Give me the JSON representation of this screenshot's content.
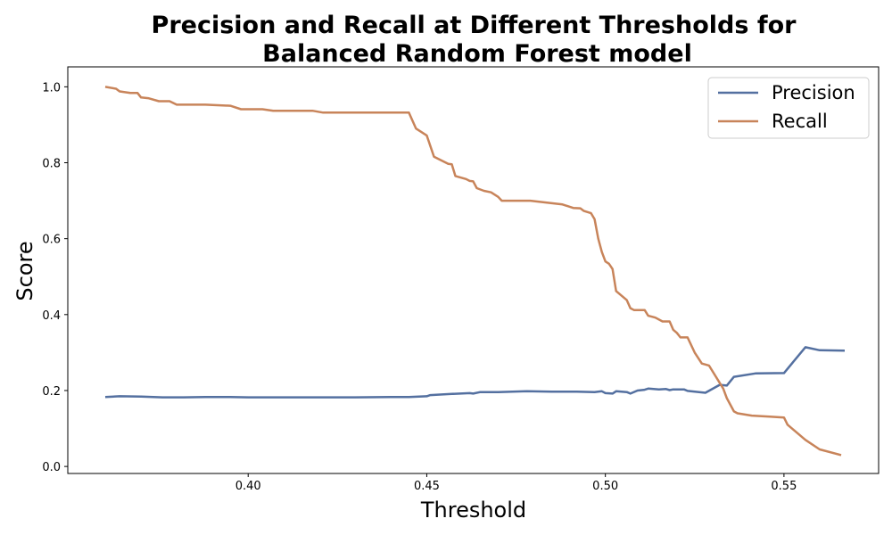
{
  "chart_data": {
    "type": "line",
    "title_lines": [
      "Precision and Recall at Different Thresholds for",
      "Balanced Random Forest  model"
    ],
    "xlabel": "Threshold",
    "ylabel": "Score",
    "xlim": [
      0.3495,
      0.5765
    ],
    "ylim": [
      -0.0185,
      1.0525
    ],
    "xticks": [
      0.4,
      0.45,
      0.5,
      0.55
    ],
    "xtick_labels": [
      "0.40",
      "0.45",
      "0.50",
      "0.55"
    ],
    "yticks": [
      0.0,
      0.2,
      0.4,
      0.6,
      0.8,
      1.0
    ],
    "ytick_labels": [
      "0.0",
      "0.2",
      "0.4",
      "0.6",
      "0.8",
      "1.0"
    ],
    "grid": false,
    "legend_position": "top-right",
    "series": [
      {
        "name": "Precision",
        "color": "#5470a0",
        "points": [
          [
            0.36,
            0.183
          ],
          [
            0.364,
            0.185
          ],
          [
            0.37,
            0.184
          ],
          [
            0.376,
            0.182
          ],
          [
            0.382,
            0.182
          ],
          [
            0.388,
            0.183
          ],
          [
            0.395,
            0.183
          ],
          [
            0.4,
            0.182
          ],
          [
            0.41,
            0.182
          ],
          [
            0.42,
            0.182
          ],
          [
            0.43,
            0.182
          ],
          [
            0.44,
            0.183
          ],
          [
            0.445,
            0.183
          ],
          [
            0.45,
            0.185
          ],
          [
            0.451,
            0.188
          ],
          [
            0.457,
            0.191
          ],
          [
            0.462,
            0.193
          ],
          [
            0.463,
            0.192
          ],
          [
            0.465,
            0.196
          ],
          [
            0.47,
            0.196
          ],
          [
            0.478,
            0.198
          ],
          [
            0.485,
            0.197
          ],
          [
            0.492,
            0.197
          ],
          [
            0.497,
            0.196
          ],
          [
            0.499,
            0.198
          ],
          [
            0.5,
            0.193
          ],
          [
            0.502,
            0.192
          ],
          [
            0.503,
            0.198
          ],
          [
            0.506,
            0.196
          ],
          [
            0.507,
            0.192
          ],
          [
            0.509,
            0.2
          ],
          [
            0.511,
            0.202
          ],
          [
            0.512,
            0.205
          ],
          [
            0.515,
            0.203
          ],
          [
            0.517,
            0.204
          ],
          [
            0.518,
            0.201
          ],
          [
            0.519,
            0.203
          ],
          [
            0.522,
            0.203
          ],
          [
            0.523,
            0.199
          ],
          [
            0.528,
            0.194
          ],
          [
            0.532,
            0.215
          ],
          [
            0.534,
            0.213
          ],
          [
            0.536,
            0.236
          ],
          [
            0.542,
            0.245
          ],
          [
            0.55,
            0.246
          ],
          [
            0.556,
            0.314
          ],
          [
            0.56,
            0.306
          ],
          [
            0.567,
            0.305
          ]
        ]
      },
      {
        "name": "Recall",
        "color": "#c8845a",
        "points": [
          [
            0.36,
            1.0
          ],
          [
            0.363,
            0.995
          ],
          [
            0.364,
            0.988
          ],
          [
            0.367,
            0.984
          ],
          [
            0.369,
            0.984
          ],
          [
            0.37,
            0.972
          ],
          [
            0.372,
            0.97
          ],
          [
            0.375,
            0.962
          ],
          [
            0.378,
            0.962
          ],
          [
            0.38,
            0.953
          ],
          [
            0.388,
            0.953
          ],
          [
            0.395,
            0.95
          ],
          [
            0.398,
            0.941
          ],
          [
            0.404,
            0.941
          ],
          [
            0.407,
            0.937
          ],
          [
            0.418,
            0.937
          ],
          [
            0.421,
            0.932
          ],
          [
            0.445,
            0.932
          ],
          [
            0.447,
            0.89
          ],
          [
            0.45,
            0.872
          ],
          [
            0.452,
            0.816
          ],
          [
            0.456,
            0.797
          ],
          [
            0.457,
            0.796
          ],
          [
            0.458,
            0.765
          ],
          [
            0.461,
            0.757
          ],
          [
            0.462,
            0.752
          ],
          [
            0.463,
            0.751
          ],
          [
            0.464,
            0.733
          ],
          [
            0.466,
            0.726
          ],
          [
            0.468,
            0.722
          ],
          [
            0.47,
            0.71
          ],
          [
            0.471,
            0.7
          ],
          [
            0.479,
            0.7
          ],
          [
            0.488,
            0.69
          ],
          [
            0.491,
            0.681
          ],
          [
            0.493,
            0.68
          ],
          [
            0.494,
            0.673
          ],
          [
            0.496,
            0.667
          ],
          [
            0.497,
            0.651
          ],
          [
            0.498,
            0.6
          ],
          [
            0.499,
            0.565
          ],
          [
            0.5,
            0.54
          ],
          [
            0.501,
            0.534
          ],
          [
            0.502,
            0.52
          ],
          [
            0.503,
            0.462
          ],
          [
            0.506,
            0.438
          ],
          [
            0.507,
            0.417
          ],
          [
            0.508,
            0.412
          ],
          [
            0.511,
            0.412
          ],
          [
            0.512,
            0.397
          ],
          [
            0.514,
            0.392
          ],
          [
            0.516,
            0.382
          ],
          [
            0.518,
            0.382
          ],
          [
            0.519,
            0.36
          ],
          [
            0.52,
            0.352
          ],
          [
            0.521,
            0.34
          ],
          [
            0.523,
            0.34
          ],
          [
            0.525,
            0.3
          ],
          [
            0.527,
            0.271
          ],
          [
            0.529,
            0.266
          ],
          [
            0.533,
            0.205
          ],
          [
            0.534,
            0.18
          ],
          [
            0.536,
            0.145
          ],
          [
            0.537,
            0.14
          ],
          [
            0.541,
            0.134
          ],
          [
            0.546,
            0.131
          ],
          [
            0.55,
            0.129
          ],
          [
            0.551,
            0.11
          ],
          [
            0.556,
            0.07
          ],
          [
            0.56,
            0.045
          ],
          [
            0.566,
            0.03
          ]
        ]
      }
    ]
  }
}
